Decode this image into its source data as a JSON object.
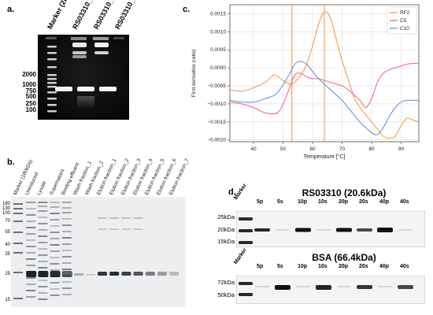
{
  "panel_a": {
    "label": "a.",
    "lane_labels": [
      "Marker (2kb)",
      "RS03310_1",
      "RS03310_2",
      "RS03310_3"
    ],
    "marker_sizes": [
      "2000",
      "1000",
      "750",
      "500",
      "250",
      "100"
    ]
  },
  "panel_b": {
    "label": "b.",
    "lane_labels": [
      "Marker (180kDa)",
      "Uninduced",
      "Lysate",
      "Supernatant",
      "Binding effluent",
      "Wash fraction_1",
      "Wash fraction_2",
      "Elution fraction_1",
      "Elution fraction_2",
      "Elution fraction_3",
      "Elution fraction_4",
      "Elution fraction_5",
      "Elution fraction_6",
      "Elution fraction_7"
    ],
    "marker_sizes": [
      "180",
      "130",
      "100",
      "70",
      "55",
      "40",
      "35",
      "25",
      "15"
    ]
  },
  "panel_c": {
    "label": "c."
  },
  "panel_d": {
    "label": "d.",
    "marker_label": "Marker",
    "lane_labels": [
      "5p",
      "5s",
      "10p",
      "10s",
      "20p",
      "20s",
      "40p",
      "40s"
    ],
    "blot1": {
      "title": "RS03310 (20.6kDa)",
      "sizes": [
        "25kDa",
        "20kDa",
        "15kDa"
      ]
    },
    "blot2": {
      "title": "BSA (66.4kDa)",
      "sizes": [
        "72kDa",
        "50kDa"
      ]
    }
  },
  "chart_data": {
    "type": "line",
    "title": "",
    "xlabel": "Temperature [°C]",
    "ylabel": "First derivative (ratio)",
    "xlim": [
      32,
      96
    ],
    "ylim": [
      -0.00205,
      0.00175
    ],
    "xticks": [
      40,
      50,
      60,
      70,
      80,
      90
    ],
    "yticks": [
      -0.002,
      -0.0015,
      -0.001,
      -0.0005,
      0.0,
      0.0005,
      0.001,
      0.0015
    ],
    "ytick_labels": [
      "−0.0020",
      "−0.0015",
      "−0.0010",
      "−0.0005",
      "0.0000",
      "0.0005",
      "0.0010",
      "0.0015"
    ],
    "grid": true,
    "legend_position": "top-right",
    "vlines": [
      {
        "x": 53,
        "color": "#f5923e"
      },
      {
        "x": 64,
        "color": "#f5923e"
      }
    ],
    "series": [
      {
        "name": "RF2",
        "color": "#f5923e",
        "x": [
          32,
          36,
          40,
          44,
          47,
          50,
          53,
          56,
          58,
          60,
          62,
          64,
          66,
          68,
          70,
          72,
          74,
          76,
          78,
          80,
          82,
          84,
          86,
          88,
          90,
          92,
          94,
          96
        ],
        "y": [
          -0.0006,
          -0.00065,
          -0.00055,
          -0.0004,
          -0.0002,
          -0.00035,
          -0.00045,
          -0.0002,
          0.0001,
          0.0006,
          0.0012,
          0.00155,
          0.0014,
          0.0008,
          0.0002,
          -0.0003,
          -0.0008,
          -0.0011,
          -0.0013,
          -0.0015,
          -0.0017,
          -0.0019,
          -0.00195,
          -0.0019,
          -0.0016,
          -0.0014,
          -0.00145,
          -0.0015
        ]
      },
      {
        "name": "C5",
        "color": "#f0607a",
        "x": [
          32,
          36,
          40,
          44,
          48,
          50,
          52,
          54,
          56,
          58,
          60,
          62,
          64,
          66,
          68,
          70,
          72,
          74,
          76,
          78,
          80,
          82,
          84,
          86,
          88,
          90,
          92,
          94,
          96
        ],
        "y": [
          -0.00095,
          -0.001,
          -0.0011,
          -0.00125,
          -0.00125,
          -0.001,
          -0.0006,
          -0.0002,
          -0.00015,
          -0.00025,
          -0.0003,
          -0.0003,
          -0.00035,
          -0.0004,
          -0.00045,
          -0.0005,
          -0.0006,
          -0.00075,
          -0.0009,
          -0.0011,
          -0.00085,
          -0.0004,
          -0.00015,
          -5e-05,
          0.0,
          5e-05,
          0.0001,
          0.00012,
          0.00013
        ]
      },
      {
        "name": "C10",
        "color": "#5b8bd9",
        "x": [
          32,
          36,
          40,
          44,
          48,
          52,
          54,
          56,
          58,
          60,
          62,
          64,
          66,
          68,
          70,
          72,
          74,
          76,
          78,
          80,
          82,
          84,
          86,
          88,
          90,
          92,
          94,
          96
        ],
        "y": [
          -0.0009,
          -0.00095,
          -0.00095,
          -0.00085,
          -0.0007,
          -0.0002,
          0.0001,
          0.00018,
          0.0001,
          -0.0001,
          -0.0003,
          -0.00045,
          -0.0006,
          -0.00075,
          -0.0009,
          -0.0011,
          -0.0013,
          -0.0015,
          -0.00165,
          -0.0018,
          -0.00185,
          -0.00165,
          -0.00135,
          -0.0011,
          -0.00095,
          -0.0009,
          -0.0009,
          -0.0009
        ]
      }
    ]
  }
}
